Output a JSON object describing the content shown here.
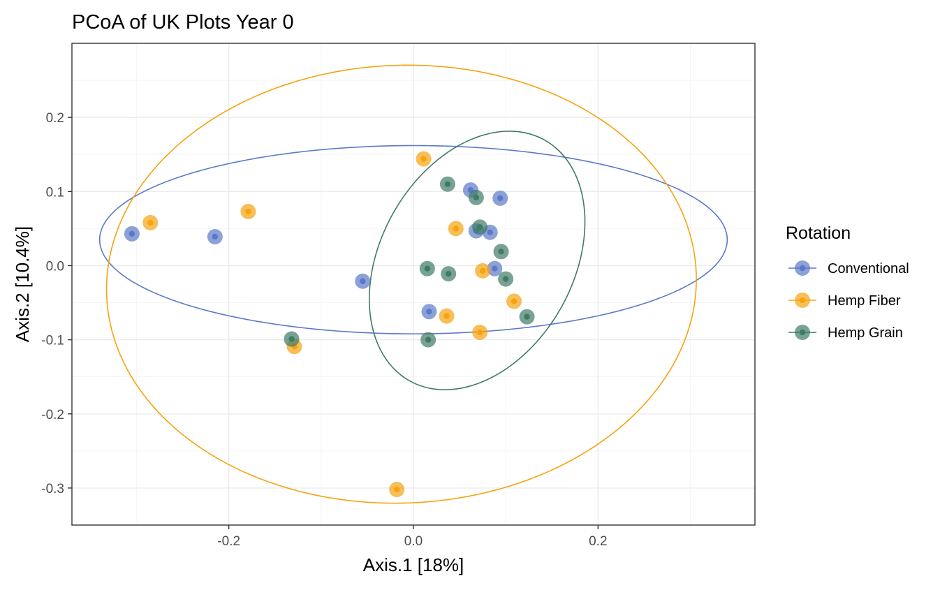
{
  "chart_data": {
    "type": "scatter",
    "title": "PCoA of UK Plots Year 0",
    "xlabel": "Axis.1   [18%]",
    "ylabel": "Axis.2   [10.4%]",
    "xlim": [
      -0.37,
      0.37
    ],
    "ylim": [
      -0.35,
      0.3
    ],
    "x_ticks": [
      -0.2,
      0.0,
      0.2
    ],
    "x_tick_labels": [
      "-0.2",
      "0.0",
      "0.2"
    ],
    "y_ticks": [
      -0.3,
      -0.2,
      -0.1,
      0.0,
      0.1,
      0.2
    ],
    "y_tick_labels": [
      "-0.3",
      "-0.2",
      "-0.1",
      "0.0",
      "0.1",
      "0.2"
    ],
    "grid": true,
    "legend": {
      "title": "Rotation",
      "position": "right"
    },
    "series": [
      {
        "name": "Conventional",
        "color": "#5B79C8",
        "points": [
          [
            -0.305,
            0.043
          ],
          [
            -0.215,
            0.039
          ],
          [
            -0.055,
            -0.021
          ],
          [
            0.062,
            0.102
          ],
          [
            0.094,
            0.091
          ],
          [
            0.068,
            0.047
          ],
          [
            0.083,
            0.045
          ],
          [
            0.088,
            -0.004
          ],
          [
            0.017,
            -0.062
          ]
        ],
        "ellipse": {
          "center": [
            0.0,
            0.035
          ],
          "semi_axes": [
            0.34,
            0.127
          ],
          "angle_deg": 0
        }
      },
      {
        "name": "Hemp Fiber",
        "color": "#F5A30F",
        "points": [
          [
            -0.285,
            0.058
          ],
          [
            -0.179,
            0.073
          ],
          [
            0.011,
            0.144
          ],
          [
            0.046,
            0.05
          ],
          [
            0.075,
            -0.007
          ],
          [
            0.109,
            -0.048
          ],
          [
            0.036,
            -0.068
          ],
          [
            0.072,
            -0.09
          ],
          [
            -0.129,
            -0.109
          ],
          [
            -0.018,
            -0.302
          ]
        ],
        "ellipse": {
          "center": [
            -0.013,
            -0.025
          ],
          "semi_axes": [
            0.32,
            0.295
          ],
          "angle_deg": 8
        }
      },
      {
        "name": "Hemp Grain",
        "color": "#3E7B65",
        "points": [
          [
            0.037,
            0.11
          ],
          [
            0.068,
            0.092
          ],
          [
            0.072,
            0.052
          ],
          [
            0.095,
            0.019
          ],
          [
            0.015,
            -0.004
          ],
          [
            0.038,
            -0.011
          ],
          [
            0.1,
            -0.018
          ],
          [
            0.123,
            -0.069
          ],
          [
            0.016,
            -0.1
          ],
          [
            -0.132,
            -0.099
          ]
        ],
        "ellipse": {
          "center": [
            0.069,
            0.007
          ],
          "semi_axes": [
            0.18,
            0.108
          ],
          "angle_deg": 72
        }
      }
    ]
  }
}
